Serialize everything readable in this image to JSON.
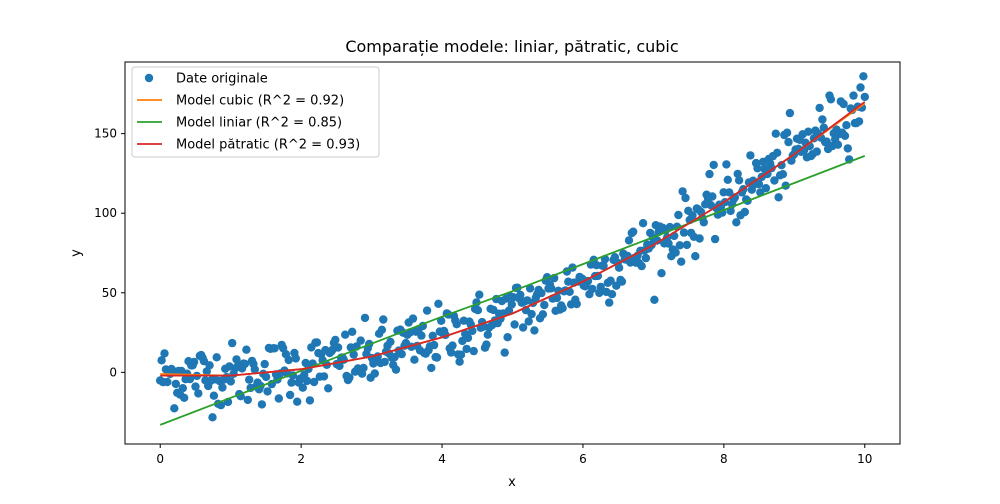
{
  "chart_data": {
    "type": "scatter",
    "title": "Comparație modele: liniar, pătratic, cubic",
    "xlabel": "x",
    "ylabel": "y",
    "xlim": [
      -0.5,
      10.5
    ],
    "ylim": [
      -45,
      195
    ],
    "xticks": [
      0,
      2,
      4,
      6,
      8,
      10
    ],
    "yticks": [
      0,
      50,
      100,
      150
    ],
    "grid": false,
    "legend_position": "top-left",
    "scatter": {
      "name": "Date originale",
      "color": "#1f77b4",
      "x_start": 0,
      "x_end": 10,
      "n_points": 500
    },
    "series": [
      {
        "name": "Model cubic (R^2 = 0.92)",
        "color": "#ff7f0e",
        "type": "line",
        "model": "cubic"
      },
      {
        "name": "Model liniar (R^2 = 0.85)",
        "color": "#2ca02c",
        "type": "line",
        "model": "linear"
      },
      {
        "name": "Model pătratic (R^2 = 0.93)",
        "color": "#d62728",
        "type": "line",
        "model": "quadratic"
      }
    ],
    "line_points": {
      "x": [
        0,
        1,
        2,
        3,
        4,
        5,
        6,
        7,
        8,
        9,
        10
      ],
      "linear": [
        -33,
        -16,
        1,
        18,
        35,
        51,
        68,
        85,
        102,
        119,
        136
      ],
      "quadratic": [
        -2,
        -2,
        2,
        10,
        22,
        37,
        57,
        80,
        107,
        137,
        170
      ],
      "cubic": [
        -1,
        -2,
        2,
        10,
        22,
        37,
        57,
        80,
        107,
        137,
        169
      ]
    }
  }
}
